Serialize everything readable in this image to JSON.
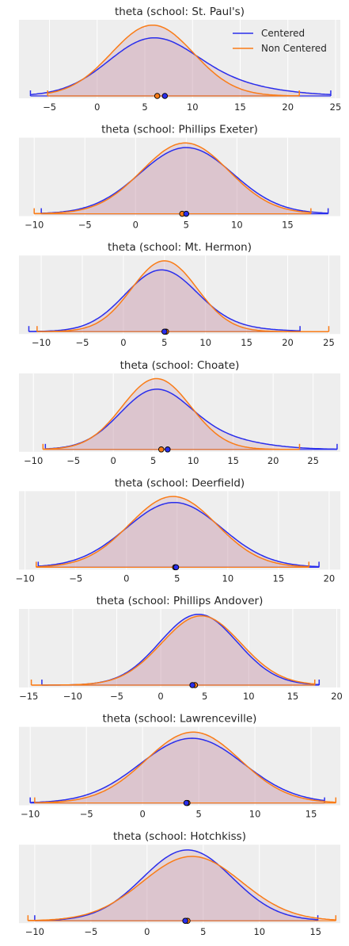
{
  "colors": {
    "centered": "#2a2eec",
    "non_centered": "#fa7c17",
    "axes_bg": "#eeeeee",
    "grid": "#ffffff",
    "fill": "#c99aab"
  },
  "legend": {
    "placement": "top-right",
    "entries": [
      "Centered",
      "Non Centered"
    ]
  },
  "chart_data": [
    {
      "type": "area",
      "title": "theta (school: St. Paul's)",
      "xticks": [
        -5,
        0,
        5,
        10,
        15,
        20,
        25
      ],
      "xlim": [
        -8.2,
        25.5
      ],
      "grid": true,
      "series": [
        {
          "name": "Centered",
          "range": [
            -7,
            24.5
          ],
          "components": [
            {
              "w": 0.7,
              "mu": 5.5,
              "sd": 4.5
            },
            {
              "w": 0.3,
              "mu": 10.5,
              "sd": 6.5
            }
          ],
          "mean": 7.1
        },
        {
          "name": "Non Centered",
          "range": [
            -5.2,
            21.2
          ],
          "components": [
            {
              "w": 1,
              "mu": 5.8,
              "sd": 4.3
            }
          ],
          "mean": 6.3
        }
      ]
    },
    {
      "type": "area",
      "title": "theta (school: Phillips Exeter)",
      "xticks": [
        -10,
        -5,
        0,
        5,
        10,
        15
      ],
      "xlim": [
        -11.5,
        20.2
      ],
      "grid": true,
      "series": [
        {
          "name": "Centered",
          "range": [
            -9.3,
            19
          ],
          "components": [
            {
              "w": 1,
              "mu": 5.0,
              "sd": 4.6
            }
          ],
          "mean": 5.0
        },
        {
          "name": "Non Centered",
          "range": [
            -10,
            17.3
          ],
          "components": [
            {
              "w": 1,
              "mu": 4.9,
              "sd": 4.3
            }
          ],
          "mean": 4.6
        }
      ]
    },
    {
      "type": "area",
      "title": "theta (school: Mt. Hermon)",
      "xticks": [
        -10,
        -5,
        0,
        5,
        10,
        15,
        20,
        25
      ],
      "xlim": [
        -12.7,
        26.4
      ],
      "grid": true,
      "series": [
        {
          "name": "Centered",
          "range": [
            -11.5,
            21.5
          ],
          "components": [
            {
              "w": 0.85,
              "mu": 4.5,
              "sd": 4.3
            },
            {
              "w": 0.15,
              "mu": 8.0,
              "sd": 6.5
            }
          ],
          "mean": 5.0
        },
        {
          "name": "Non Centered",
          "range": [
            -10.5,
            25
          ],
          "components": [
            {
              "w": 1,
              "mu": 5.0,
              "sd": 4.0
            }
          ],
          "mean": 5.2
        }
      ]
    },
    {
      "type": "area",
      "title": "theta (school: Choate)",
      "xticks": [
        -10,
        -5,
        0,
        5,
        10,
        15,
        20,
        25
      ],
      "xlim": [
        -11.8,
        28.4
      ],
      "grid": true,
      "series": [
        {
          "name": "Centered",
          "range": [
            -8.5,
            28
          ],
          "components": [
            {
              "w": 0.7,
              "mu": 5.0,
              "sd": 4.3
            },
            {
              "w": 0.3,
              "mu": 10.0,
              "sd": 6.5
            }
          ],
          "mean": 6.8
        },
        {
          "name": "Non Centered",
          "range": [
            -8.8,
            23.3
          ],
          "components": [
            {
              "w": 1,
              "mu": 5.4,
              "sd": 4.3
            }
          ],
          "mean": 6.0
        }
      ]
    },
    {
      "type": "area",
      "title": "theta (school: Deerfield)",
      "xticks": [
        -10,
        -5,
        0,
        5,
        10,
        15,
        20
      ],
      "xlim": [
        -10.6,
        21.1
      ],
      "grid": true,
      "series": [
        {
          "name": "Centered",
          "range": [
            -8.7,
            19
          ],
          "components": [
            {
              "w": 1,
              "mu": 4.7,
              "sd": 4.7
            }
          ],
          "mean": 4.9
        },
        {
          "name": "Non Centered",
          "range": [
            -8.9,
            18
          ],
          "components": [
            {
              "w": 1,
              "mu": 4.6,
              "sd": 4.3
            }
          ],
          "mean": 4.8
        }
      ]
    },
    {
      "type": "area",
      "title": "theta (school: Phillips Andover)",
      "xticks": [
        -15,
        -10,
        -5,
        0,
        5,
        10,
        15,
        20
      ],
      "xlim": [
        -16.1,
        20.4
      ],
      "grid": true,
      "series": [
        {
          "name": "Centered",
          "range": [
            -13.5,
            18
          ],
          "components": [
            {
              "w": 1,
              "mu": 4.3,
              "sd": 4.4
            }
          ],
          "mean": 3.6
        },
        {
          "name": "Non Centered",
          "range": [
            -14.7,
            17.5
          ],
          "components": [
            {
              "w": 1,
              "mu": 4.6,
              "sd": 4.5
            }
          ],
          "mean": 3.9
        }
      ]
    },
    {
      "type": "area",
      "title": "theta (school: Lawrenceville)",
      "xticks": [
        -10,
        -5,
        0,
        5,
        10,
        15
      ],
      "xlim": [
        -11.0,
        17.6
      ],
      "grid": true,
      "series": [
        {
          "name": "Centered",
          "range": [
            -10,
            16.2
          ],
          "components": [
            {
              "w": 1,
              "mu": 4.4,
              "sd": 4.6
            }
          ],
          "mean": 3.9
        },
        {
          "name": "Non Centered",
          "range": [
            -9.6,
            17.2
          ],
          "components": [
            {
              "w": 1,
              "mu": 4.5,
              "sd": 4.2
            }
          ],
          "mean": 4.0
        }
      ]
    },
    {
      "type": "area",
      "title": "theta (school: Hotchkiss)",
      "xticks": [
        -10,
        -5,
        0,
        5,
        10,
        15
      ],
      "xlim": [
        -11.4,
        17.2
      ],
      "grid": true,
      "series": [
        {
          "name": "Centered",
          "range": [
            -10,
            15.2
          ],
          "components": [
            {
              "w": 1,
              "mu": 3.6,
              "sd": 4.0
            }
          ],
          "mean": 3.4
        },
        {
          "name": "Non Centered",
          "range": [
            -10.6,
            16.8
          ],
          "components": [
            {
              "w": 1,
              "mu": 4.0,
              "sd": 4.4
            }
          ],
          "mean": 3.6
        }
      ]
    }
  ]
}
